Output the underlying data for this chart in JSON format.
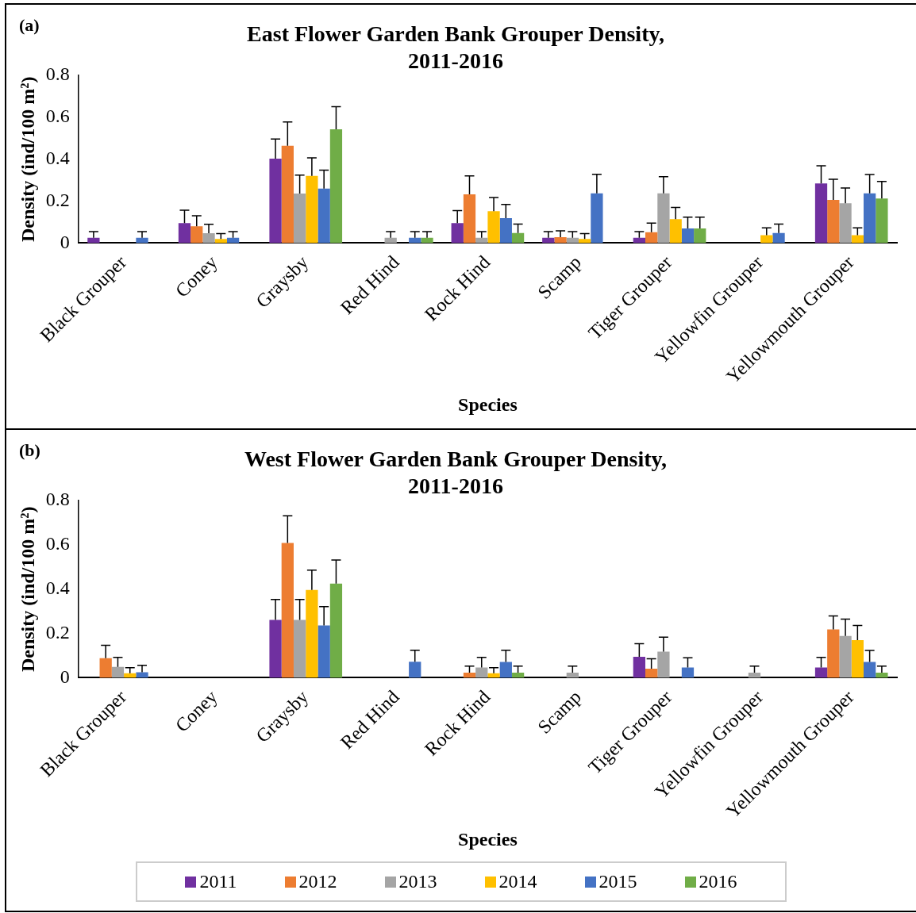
{
  "chart_data": [
    {
      "type": "bar",
      "title": "East Flower Garden Bank Grouper Density, 2011-2016",
      "xlabel": "Species",
      "ylabel": "Density (ind/100 m²)",
      "annotations": [
        "(a)"
      ],
      "categories": [
        "Black Grouper",
        "Coney",
        "Graysby",
        "Red Hind",
        "Rock Hind",
        "Scamp",
        "Tiger Grouper",
        "Yellowfin Grouper",
        "Yellowmouth Grouper"
      ],
      "ylim": [
        0,
        0.8
      ],
      "yticks": [
        0,
        0.2,
        0.4,
        0.6,
        0.8
      ],
      "grid": false,
      "legend": false,
      "series": [
        {
          "color": "#7030a0",
          "values": [
            0.025,
            0.095,
            0.403,
            null,
            0.095,
            0.025,
            0.025,
            null,
            0.285
          ],
          "errors": [
            [
              0.025,
              0.055
            ],
            [
              0.095,
              0.157
            ],
            [
              0.403,
              0.497
            ],
            null,
            [
              0.095,
              0.155
            ],
            [
              0.025,
              0.055
            ],
            [
              0.025,
              0.055
            ],
            null,
            [
              0.285,
              0.369
            ]
          ]
        },
        {
          "color": "#ed7d31",
          "values": [
            null,
            0.08,
            0.465,
            null,
            0.233,
            0.028,
            0.052,
            null,
            0.206
          ],
          "errors": [
            null,
            [
              0.08,
              0.13
            ],
            [
              0.465,
              0.578
            ],
            null,
            [
              0.233,
              0.321
            ],
            [
              0.028,
              0.058
            ],
            [
              0.052,
              0.095
            ],
            null,
            [
              0.206,
              0.305
            ]
          ]
        },
        {
          "color": "#a5a5a5",
          "values": [
            null,
            0.047,
            0.236,
            0.025,
            0.025,
            0.025,
            0.237,
            null,
            0.19
          ],
          "errors": [
            null,
            [
              0.047,
              0.09
            ],
            [
              0.236,
              0.324
            ],
            [
              0.025,
              0.055
            ],
            [
              0.025,
              0.055
            ],
            [
              0.025,
              0.055
            ],
            [
              0.237,
              0.317
            ],
            null,
            [
              0.19,
              0.263
            ]
          ]
        },
        {
          "color": "#ffc000",
          "values": [
            null,
            0.02,
            0.321,
            null,
            0.152,
            0.02,
            0.114,
            0.038,
            0.038
          ],
          "errors": [
            null,
            [
              0.02,
              0.045
            ],
            [
              0.321,
              0.407
            ],
            null,
            [
              0.152,
              0.217
            ],
            [
              0.02,
              0.045
            ],
            [
              0.114,
              0.17
            ],
            [
              0.038,
              0.073
            ],
            [
              0.038,
              0.073
            ]
          ]
        },
        {
          "color": "#4472c4",
          "values": [
            0.025,
            0.025,
            0.26,
            0.025,
            0.119,
            0.237,
            0.07,
            0.048,
            0.237
          ],
          "errors": [
            [
              0.025,
              0.055
            ],
            [
              0.025,
              0.055
            ],
            [
              0.26,
              0.348
            ],
            [
              0.025,
              0.055
            ],
            [
              0.119,
              0.184
            ],
            [
              0.237,
              0.328
            ],
            [
              0.07,
              0.124
            ],
            [
              0.048,
              0.091
            ],
            [
              0.237,
              0.327
            ]
          ]
        },
        {
          "color": "#70ad47",
          "values": [
            null,
            null,
            0.543,
            0.025,
            0.048,
            null,
            0.07,
            null,
            0.213
          ],
          "errors": [
            null,
            null,
            [
              0.543,
              0.651
            ],
            [
              0.025,
              0.055
            ],
            [
              0.048,
              0.091
            ],
            null,
            [
              0.07,
              0.124
            ],
            null,
            [
              0.213,
              0.294
            ]
          ]
        }
      ]
    },
    {
      "type": "bar",
      "title": "West Flower Garden Bank Grouper Density, 2011-2016",
      "xlabel": "Species",
      "ylabel": "Density (ind/100 m²)",
      "annotations": [
        "(b)"
      ],
      "categories": [
        "Black Grouper",
        "Coney",
        "Graysby",
        "Red Hind",
        "Rock Hind",
        "Scamp",
        "Tiger Grouper",
        "Yellowfin Grouper",
        "Yellowmouth Grouper"
      ],
      "ylim": [
        0,
        0.8
      ],
      "yticks": [
        0,
        0.2,
        0.4,
        0.6,
        0.8
      ],
      "grid": false,
      "legend": "bottom",
      "series": [
        {
          "name": "2011",
          "color": "#7030a0",
          "values": [
            null,
            null,
            0.261,
            null,
            null,
            null,
            0.095,
            null,
            0.046
          ],
          "errors": [
            null,
            null,
            [
              0.261,
              0.354
            ],
            null,
            null,
            null,
            [
              0.095,
              0.154
            ],
            null,
            [
              0.046,
              0.092
            ]
          ]
        },
        {
          "name": "2012",
          "color": "#ed7d31",
          "values": [
            0.088,
            null,
            0.609,
            null,
            0.023,
            null,
            0.041,
            null,
            0.218
          ],
          "errors": [
            [
              0.088,
              0.147
            ],
            null,
            [
              0.609,
              0.732
            ],
            null,
            [
              0.023,
              0.053
            ],
            null,
            [
              0.041,
              0.086
            ],
            null,
            [
              0.218,
              0.279
            ]
          ]
        },
        {
          "name": "2013",
          "color": "#a5a5a5",
          "values": [
            0.049,
            null,
            0.261,
            null,
            0.046,
            0.023,
            0.118,
            0.023,
            0.189
          ],
          "errors": [
            [
              0.049,
              0.092
            ],
            null,
            [
              0.261,
              0.354
            ],
            null,
            [
              0.046,
              0.092
            ],
            [
              0.023,
              0.053
            ],
            [
              0.118,
              0.183
            ],
            [
              0.023,
              0.053
            ],
            [
              0.189,
              0.265
            ]
          ]
        },
        {
          "name": "2014",
          "color": "#ffc000",
          "values": [
            0.02,
            null,
            0.397,
            null,
            0.02,
            null,
            null,
            null,
            0.17
          ],
          "errors": [
            [
              0.02,
              0.045
            ],
            null,
            [
              0.397,
              0.486
            ],
            null,
            [
              0.02,
              0.045
            ],
            null,
            null,
            null,
            [
              0.17,
              0.236
            ]
          ]
        },
        {
          "name": "2015",
          "color": "#4472c4",
          "values": [
            0.025,
            null,
            0.236,
            0.072,
            0.071,
            null,
            0.046,
            null,
            0.071
          ],
          "errors": [
            [
              0.025,
              0.056
            ],
            null,
            [
              0.236,
              0.321
            ],
            [
              0.072,
              0.124
            ],
            [
              0.071,
              0.124
            ],
            null,
            [
              0.046,
              0.09
            ],
            null,
            [
              0.071,
              0.123
            ]
          ]
        },
        {
          "name": "2016",
          "color": "#70ad47",
          "values": [
            null,
            null,
            0.425,
            null,
            0.023,
            null,
            null,
            null,
            0.023
          ],
          "errors": [
            null,
            null,
            [
              0.425,
              0.532
            ],
            null,
            [
              0.023,
              0.053
            ],
            null,
            null,
            null,
            [
              0.023,
              0.053
            ]
          ]
        }
      ]
    }
  ]
}
